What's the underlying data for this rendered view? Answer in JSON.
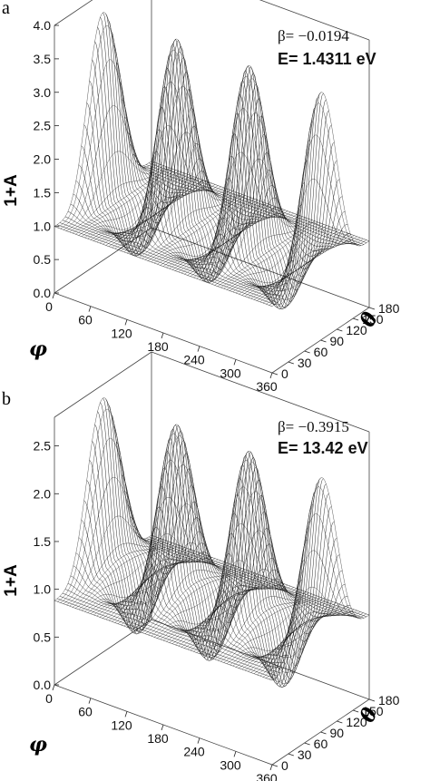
{
  "chart_data": [
    {
      "type": "surface",
      "panel_label": "a",
      "annotation_beta": "β= −0.0194",
      "annotation_energy": "E= 1.4311 eV",
      "zlabel": "1+A",
      "xlabel": "φ",
      "ylabel": "θ",
      "x_ticks": [
        "0",
        "60",
        "120",
        "180",
        "240",
        "300",
        "360"
      ],
      "y_ticks": [
        "0",
        "30",
        "60",
        "90",
        "120",
        "150",
        "180"
      ],
      "z_ticks": [
        "0.0",
        "0.5",
        "1.0",
        "1.5",
        "2.0",
        "2.5",
        "3.0",
        "3.5",
        "4.0"
      ],
      "xlim": [
        0,
        360
      ],
      "ylim": [
        0,
        180
      ],
      "zlim": [
        0,
        4
      ],
      "beta": -0.0194,
      "peak_phi": [
        0,
        60,
        120,
        180,
        240,
        300,
        360
      ],
      "peak_theta": 90,
      "peak_height": 3.7,
      "mesh": true
    },
    {
      "type": "surface",
      "panel_label": "b",
      "annotation_beta": "β= −0.3915",
      "annotation_energy": "E= 13.42 eV",
      "zlabel": "1+A",
      "xlabel": "φ",
      "ylabel": "θ",
      "x_ticks": [
        "0",
        "60",
        "120",
        "180",
        "240",
        "300",
        "360"
      ],
      "y_ticks": [
        "0",
        "30",
        "60",
        "90",
        "120",
        "150",
        "180"
      ],
      "z_ticks": [
        "0.0",
        "0.5",
        "1.0",
        "1.5",
        "2.0",
        "2.5"
      ],
      "xlim": [
        0,
        360
      ],
      "ylim": [
        0,
        180
      ],
      "zlim": [
        0,
        2.8
      ],
      "beta": -0.3915,
      "peak_phi": [
        0,
        60,
        120,
        180,
        240,
        300,
        360
      ],
      "peak_theta": 90,
      "peak_height": 2.6,
      "mesh": true
    }
  ]
}
